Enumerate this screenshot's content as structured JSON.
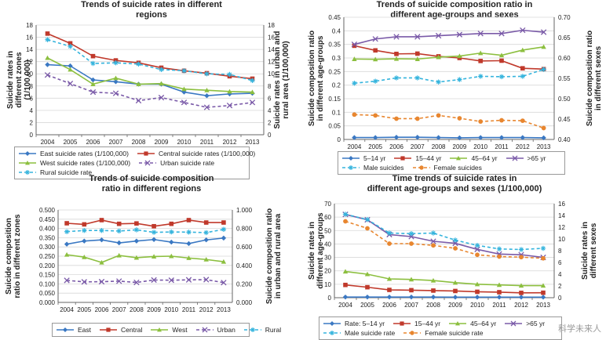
{
  "colors": {
    "blue": "#3a78c3",
    "red": "#c0392b",
    "green": "#8cbf3f",
    "purple": "#7a5aa8",
    "cyan": "#35b4dd",
    "orange": "#e8862f",
    "grid": "#d8d8d8",
    "axis": "#666666"
  },
  "watermark": "科学未来人",
  "chart_data": [
    {
      "id": "p1",
      "type": "line",
      "title": "Trends of suicide rates in different regions",
      "title_lines": [
        "Trends of suicide rates in different",
        "regions"
      ],
      "ylabel": "Suicide rates in different zones (1/100,000)",
      "ylabel_lines": [
        "Suicide rates in",
        "different zones",
        "(1/100,000)"
      ],
      "y2label": "Suicide rates in urban and rural area (1/100,000)",
      "y2label_lines": [
        "Suicide rates in urban and",
        "rural area (1/100,000)"
      ],
      "categories": [
        "2004",
        "2005",
        "2006",
        "2007",
        "2008",
        "2009",
        "2010",
        "2011",
        "2012",
        "2013"
      ],
      "ylim": [
        0,
        18
      ],
      "yticks": [
        0,
        2,
        4,
        6,
        8,
        10,
        12,
        14,
        16,
        18
      ],
      "y2lim": [
        0,
        18
      ],
      "y2ticks": [
        0,
        2,
        4,
        6,
        8,
        10,
        12,
        14,
        16,
        18
      ],
      "grid": true,
      "series": [
        {
          "name": "East suicide rates (1/100,000)",
          "axis": "left",
          "color": "blue",
          "marker": "diamond",
          "dash": false,
          "values": [
            11.5,
            11.3,
            9.0,
            8.7,
            8.3,
            8.3,
            7.0,
            6.4,
            6.7,
            6.8
          ]
        },
        {
          "name": "Central suicide rates (1/100,000)",
          "axis": "left",
          "color": "red",
          "marker": "square",
          "dash": false,
          "values": [
            16.6,
            15.0,
            12.9,
            12.2,
            11.8,
            11.0,
            10.5,
            10.1,
            9.6,
            9.2
          ]
        },
        {
          "name": "West suicide rates (1/100,000)",
          "axis": "left",
          "color": "green",
          "marker": "triangle",
          "dash": false,
          "values": [
            12.6,
            10.7,
            8.3,
            9.3,
            8.3,
            8.4,
            7.5,
            7.3,
            7.1,
            7.0
          ]
        },
        {
          "name": "Urban suicide rate",
          "axis": "right",
          "color": "purple",
          "marker": "x",
          "dash": true,
          "values": [
            9.8,
            8.4,
            7.0,
            6.8,
            5.6,
            6.1,
            5.3,
            4.5,
            4.8,
            5.3
          ]
        },
        {
          "name": "Rural suicide rate",
          "axis": "right",
          "color": "cyan",
          "marker": "star",
          "dash": true,
          "values": [
            15.6,
            14.5,
            11.7,
            11.8,
            11.6,
            10.7,
            10.5,
            10.0,
            9.9,
            8.9
          ]
        }
      ],
      "legend_rows": [
        [
          0,
          1
        ],
        [
          2,
          3
        ],
        [
          4
        ]
      ]
    },
    {
      "id": "p2",
      "type": "line",
      "title": "Trends of suicide composition ratio in different age-groups and sexes",
      "title_lines": [
        "Trends of suicide composition ratio in",
        "different age-groups and sexes"
      ],
      "ylabel": "Suicide composition ratio in different age-groups",
      "ylabel_lines": [
        "Suicide composition ratio",
        "in different age-groups"
      ],
      "y2label": "Suicide composition ratio in different sexes",
      "y2label_lines": [
        "Suicide composition ratio",
        "in different sexes"
      ],
      "categories": [
        "2004",
        "2005",
        "2006",
        "2007",
        "2008",
        "2009",
        "2010",
        "2011",
        "2012",
        "2013"
      ],
      "ylim": [
        0,
        0.45
      ],
      "yticks": [
        0,
        0.05,
        0.1,
        0.15,
        0.2,
        0.25,
        0.3,
        0.35,
        0.4,
        0.45
      ],
      "yticklabels": [
        "0",
        "0.05",
        "0.1",
        "0.15",
        "0.2",
        "0.25",
        "0.3",
        "0.35",
        "0.4",
        "0.45"
      ],
      "y2lim": [
        0.4,
        0.7
      ],
      "y2ticks": [
        0.4,
        0.45,
        0.5,
        0.55,
        0.6,
        0.65,
        0.7
      ],
      "y2ticklabels": [
        "0.40",
        "0.45",
        "0.50",
        "0.55",
        "0.60",
        "0.65",
        "0.70"
      ],
      "grid": true,
      "series": [
        {
          "name": "5–14 yr",
          "axis": "left",
          "color": "blue",
          "marker": "diamond",
          "dash": false,
          "values": [
            0.007,
            0.007,
            0.008,
            0.008,
            0.007,
            0.006,
            0.007,
            0.007,
            0.007,
            0.006
          ]
        },
        {
          "name": "15–44 yr",
          "axis": "left",
          "color": "red",
          "marker": "square",
          "dash": false,
          "values": [
            0.345,
            0.328,
            0.315,
            0.316,
            0.306,
            0.3,
            0.289,
            0.29,
            0.262,
            0.259
          ]
        },
        {
          "name": "45–64 yr",
          "axis": "left",
          "color": "green",
          "marker": "triangle",
          "dash": false,
          "values": [
            0.296,
            0.295,
            0.297,
            0.296,
            0.303,
            0.307,
            0.318,
            0.31,
            0.329,
            0.341
          ]
        },
        {
          "name": ">65 yr",
          "axis": "left",
          "color": "purple",
          "marker": "x",
          "dash": false,
          "values": [
            0.35,
            0.37,
            0.378,
            0.378,
            0.382,
            0.386,
            0.39,
            0.39,
            0.402,
            0.395
          ]
        },
        {
          "name": "Male suicides",
          "axis": "right",
          "color": "cyan",
          "marker": "star",
          "dash": true,
          "values": [
            0.538,
            0.543,
            0.551,
            0.551,
            0.541,
            0.547,
            0.555,
            0.554,
            0.555,
            0.572
          ]
        },
        {
          "name": "Female suicides",
          "axis": "right",
          "color": "orange",
          "marker": "circle",
          "dash": true,
          "values": [
            0.461,
            0.459,
            0.451,
            0.451,
            0.459,
            0.452,
            0.444,
            0.447,
            0.446,
            0.428
          ]
        }
      ],
      "legend_rows": [
        [
          0,
          1,
          2,
          3
        ],
        [
          4,
          5
        ]
      ]
    },
    {
      "id": "p3",
      "type": "line",
      "title": "Trends of suicide composition ratio in different regions",
      "title_lines": [
        "Trends of suicide composition",
        "ratio in different regions"
      ],
      "ylabel": "Suicide composition ratio in different zones",
      "ylabel_lines": [
        "Suicide composition",
        "ratio in different zones"
      ],
      "y2label": "Suicide composition ratio in urban and rural area",
      "y2label_lines": [
        "Suicide composition ratio",
        "in urban and rural area"
      ],
      "categories": [
        "2004",
        "2005",
        "2006",
        "2007",
        "2008",
        "2009",
        "2010",
        "2011",
        "2012",
        "2013"
      ],
      "ylim": [
        0,
        0.5
      ],
      "yticks": [
        0,
        0.05,
        0.1,
        0.15,
        0.2,
        0.25,
        0.3,
        0.35,
        0.4,
        0.45,
        0.5
      ],
      "yticklabels": [
        "0.000",
        "0.050",
        "0.100",
        "0.150",
        "0.200",
        "0.250",
        "0.300",
        "0.350",
        "0.400",
        "0.450",
        "0.500"
      ],
      "y2lim": [
        0,
        1.0
      ],
      "y2ticks": [
        0,
        0.2,
        0.4,
        0.6,
        0.8,
        1.0
      ],
      "y2ticklabels": [
        "0.000",
        "0.200",
        "0.400",
        "0.600",
        "0.800",
        "1.000"
      ],
      "grid": true,
      "series": [
        {
          "name": "East",
          "axis": "left",
          "color": "blue",
          "marker": "diamond",
          "dash": false,
          "values": [
            0.315,
            0.332,
            0.338,
            0.322,
            0.332,
            0.34,
            0.326,
            0.318,
            0.338,
            0.348
          ]
        },
        {
          "name": "Central",
          "axis": "left",
          "color": "red",
          "marker": "square",
          "dash": false,
          "values": [
            0.428,
            0.422,
            0.445,
            0.425,
            0.427,
            0.412,
            0.425,
            0.445,
            0.432,
            0.432
          ]
        },
        {
          "name": "West",
          "axis": "left",
          "color": "green",
          "marker": "triangle",
          "dash": false,
          "values": [
            0.258,
            0.245,
            0.216,
            0.254,
            0.242,
            0.248,
            0.25,
            0.24,
            0.232,
            0.22
          ]
        },
        {
          "name": "Urban",
          "axis": "right",
          "color": "purple",
          "marker": "x",
          "dash": true,
          "values": [
            0.238,
            0.222,
            0.224,
            0.23,
            0.216,
            0.242,
            0.24,
            0.244,
            0.246,
            0.214
          ]
        },
        {
          "name": "Rural",
          "axis": "right",
          "color": "cyan",
          "marker": "star",
          "dash": true,
          "values": [
            0.765,
            0.778,
            0.778,
            0.772,
            0.785,
            0.758,
            0.762,
            0.76,
            0.755,
            0.79
          ]
        }
      ],
      "legend_rows": [
        [
          0,
          1,
          2,
          3,
          4
        ]
      ]
    },
    {
      "id": "p4",
      "type": "line",
      "title": "Time trends of suicide rates in different age-groups and sexes (1/100,000)",
      "title_lines": [
        "Time trends of suicide rates in",
        "different age-groups and sexes (1/100,000)"
      ],
      "ylabel": "Suicide rates in different age-groups",
      "ylabel_lines": [
        "Suicide rates in",
        "different age-groups"
      ],
      "y2label": "Suicide rates in different sexes",
      "y2label_lines": [
        "Suicide rates in",
        "different sexes"
      ],
      "categories": [
        "2004",
        "2005",
        "2006",
        "2007",
        "2008",
        "2009",
        "2010",
        "2011",
        "2012",
        "2013"
      ],
      "ylim": [
        0,
        70
      ],
      "yticks": [
        0,
        10,
        20,
        30,
        40,
        50,
        60,
        70
      ],
      "y2lim": [
        0,
        16
      ],
      "y2ticks": [
        0,
        2,
        4,
        6,
        8,
        10,
        12,
        14,
        16
      ],
      "grid": true,
      "series": [
        {
          "name": "Rate: 5–14 yr",
          "axis": "left",
          "color": "blue",
          "marker": "diamond",
          "dash": false,
          "values": [
            0.5,
            0.5,
            0.5,
            0.5,
            0.5,
            0.4,
            0.4,
            0.4,
            0.4,
            0.4
          ]
        },
        {
          "name": "15–44 yr",
          "axis": "left",
          "color": "red",
          "marker": "square",
          "dash": false,
          "values": [
            9.5,
            7.8,
            5.8,
            5.6,
            5.3,
            5.0,
            4.4,
            4.1,
            3.6,
            3.7
          ]
        },
        {
          "name": "45–64 yr",
          "axis": "left",
          "color": "green",
          "marker": "triangle",
          "dash": false,
          "values": [
            19.5,
            17.5,
            14.0,
            13.6,
            12.8,
            11.2,
            10.0,
            9.5,
            9.0,
            9.0
          ]
        },
        {
          "name": ">65 yr",
          "axis": "left",
          "color": "purple",
          "marker": "x",
          "dash": false,
          "values": [
            62.0,
            58.0,
            47.0,
            45.5,
            42.0,
            40.5,
            36.0,
            32.5,
            32.0,
            30.0
          ]
        },
        {
          "name": "Male suicide rate",
          "axis": "right",
          "color": "cyan",
          "marker": "star",
          "dash": true,
          "values": [
            14.2,
            13.3,
            11.0,
            10.9,
            11.0,
            9.8,
            8.9,
            8.3,
            8.2,
            8.4
          ]
        },
        {
          "name": "Female suicide rate",
          "axis": "right",
          "color": "orange",
          "marker": "circle",
          "dash": true,
          "values": [
            13.0,
            11.8,
            9.2,
            9.2,
            8.9,
            8.4,
            7.3,
            7.0,
            6.9,
            6.7
          ]
        }
      ],
      "legend_rows": [
        [
          0,
          1,
          2,
          3
        ],
        [
          4,
          5
        ]
      ]
    }
  ]
}
